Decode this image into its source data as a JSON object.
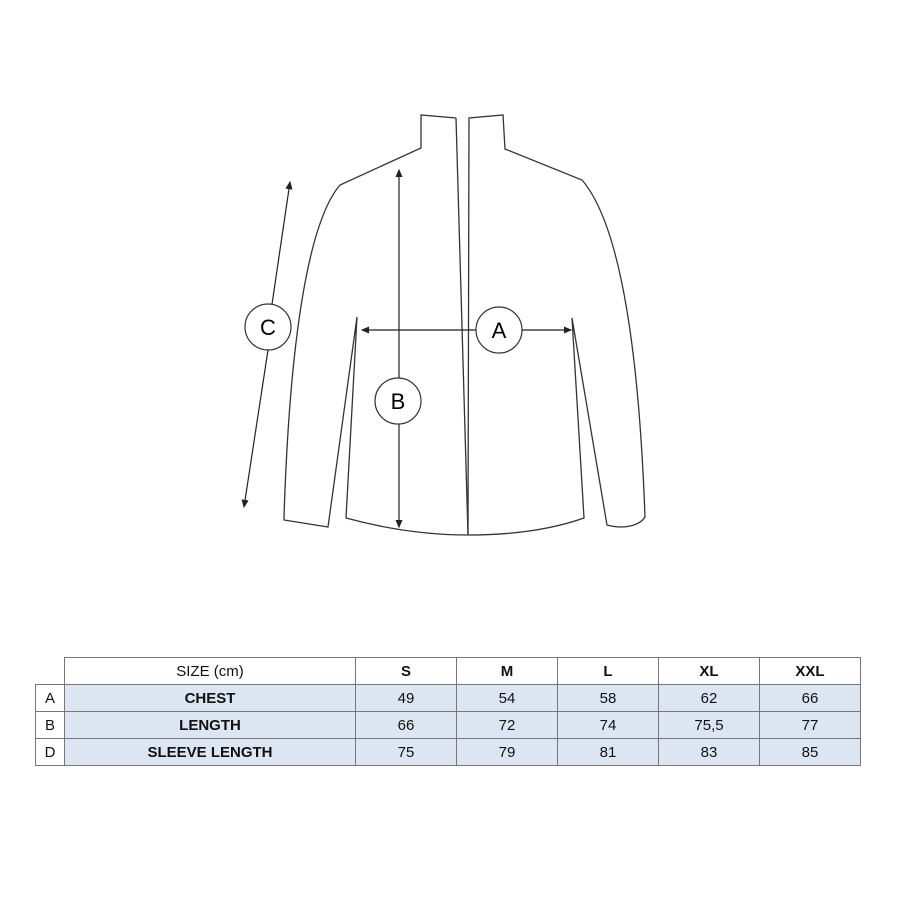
{
  "diagram": {
    "labels": {
      "a": "A",
      "b": "B",
      "c": "C"
    }
  },
  "table": {
    "header": {
      "label": "SIZE (cm)",
      "sizes": [
        "S",
        "M",
        "L",
        "XL",
        "XXL"
      ]
    },
    "rows": [
      {
        "letter": "A",
        "label": "CHEST",
        "values": [
          "49",
          "54",
          "58",
          "62",
          "66"
        ]
      },
      {
        "letter": "B",
        "label": "LENGTH",
        "values": [
          "66",
          "72",
          "74",
          "75,5",
          "77"
        ]
      },
      {
        "letter": "D",
        "label": "SLEEVE LENGTH",
        "values": [
          "75",
          "79",
          "81",
          "83",
          "85"
        ]
      }
    ],
    "row_fill": "#dce6f2"
  }
}
